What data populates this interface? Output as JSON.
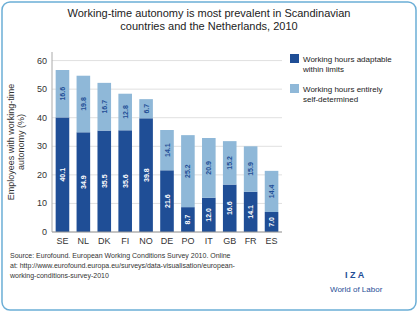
{
  "chart_data": {
    "type": "bar",
    "stacked": true,
    "title": "Working-time autonomy is most prevalent in Scandinavian\ncountries and the Netherlands, 2010",
    "categories": [
      "SE",
      "NL",
      "DK",
      "FI",
      "NO",
      "DE",
      "PO",
      "IT",
      "GB",
      "FR",
      "ES"
    ],
    "series": [
      {
        "name": "Working hours adaptable\nwithin limits",
        "color": "#1f4e96",
        "values": [
          40.1,
          34.9,
          35.5,
          35.6,
          39.8,
          21.6,
          8.7,
          12.0,
          16.6,
          14.1,
          7.0
        ]
      },
      {
        "name": "Working hours entirely\nself-determined",
        "color": "#8fb8d8",
        "values": [
          16.6,
          19.8,
          16.7,
          12.8,
          6.7,
          14.1,
          25.2,
          20.9,
          15.2,
          15.9,
          14.4
        ]
      }
    ],
    "ylabel": "Employees with working-time\nautonomy (%)",
    "ylim": [
      0,
      63
    ],
    "yticks": [
      0,
      10,
      20,
      30,
      40,
      50,
      60
    ],
    "grid": true,
    "legend": "right",
    "data_labels": true,
    "annotations": [
      "Source: Eurofound. European Working Conditions Survey 2010. Online",
      "at: http://www.eurofound.europa.eu/surveys/data-visualisation/european-",
      "working-conditions-survey-2010",
      "I  Z  A",
      "World of Labor"
    ]
  }
}
